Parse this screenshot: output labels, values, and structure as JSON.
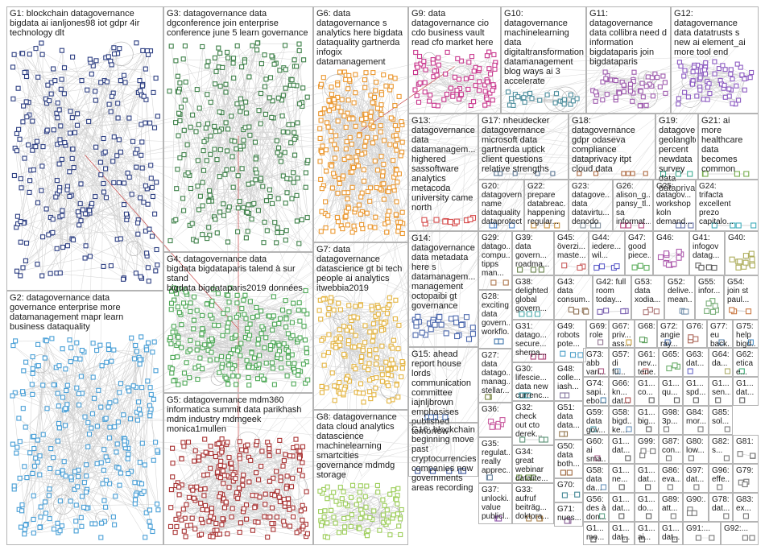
{
  "title": "",
  "groups": [
    {
      "id": "G1",
      "label": "G1: blockchain datagovernance\nbigdata ai ianljones98 iot gdpr 4ir\ntechnology dlt",
      "color": "#0a1f6e"
    },
    {
      "id": "G2",
      "label": "G2: datagovernance data\ngovernance enterprise more\ndatamanagement mapr learn\nbusiness dataquality",
      "color": "#2a8fd0"
    },
    {
      "id": "G3",
      "label": "G3: datagovernance data\ndgconference join enterprise\nconference june 5 learn governance",
      "color": "#1d6b2a"
    },
    {
      "id": "G4",
      "label": "G4: datagovernance data\nbigdata bigdataparis talend à sur stand\nbigdata bigdataparis2019 données",
      "color": "#2f9a3a"
    },
    {
      "id": "G5",
      "label": "G5: datagovernance mdm360\ninformatica summit data parikhash\nmdm industry mdmgeek\nmonica1mullen",
      "color": "#9a1010"
    },
    {
      "id": "G6",
      "label": "G6: data\ndatagovernance s\nanalytics here bigdata\ndataquality gartnerda\ninfogix\ndatamanagement",
      "color": "#e8860c"
    },
    {
      "id": "G7",
      "label": "G7: data\ndatagovernance\ndatascience gt bi tech\npeople ai analytics\nitwebbia2019",
      "color": "#e0a820"
    },
    {
      "id": "G8",
      "label": "G8: datagovernance\ndata cloud analytics\ndatascience\nmachinelearning\nsmartcities\ngovernance mdmdg\nstorage",
      "color": "#8cc63e"
    },
    {
      "id": "G9",
      "label": "G9: data\ndatagovernance cio\ncdo business vault\nread cfo market here",
      "color": "#c0147a"
    },
    {
      "id": "G10",
      "label": "G10:\ndatagovernance\nmachinelearning\ndata\ndigitaltransformation\ndatamanagement\nblog ways ai 3\naccelerate",
      "color": "#2e7b8c"
    },
    {
      "id": "G11",
      "label": "G11:\ndatagovernance\ndata collibra need d\ninformation\nbigdataparis join\nbigdataparis",
      "color": "#8e3fa0"
    },
    {
      "id": "G12",
      "label": "G12:\ndatagovernance\ndata datatrusts s\nnew ai element_ai\nmore tool end",
      "color": "#7a40b8"
    },
    {
      "id": "G13",
      "label": "G13:\ndatagovernance\ndata\ndatamanagem...\nhighered\nsassoftware\nanalytics\nmetacoda\nuniversity came\nnorth",
      "color": "#d03030"
    },
    {
      "id": "G17",
      "label": "G17: nheudecker\ndatagovernance\nmicrosoft data\ngartnerda uptick\nclient questions\nrelative strengths",
      "color": "#406080"
    },
    {
      "id": "G18",
      "label": "G18:\ndatagovernance\ngdpr odaseva\ncompliance\ndataprivacy itpt\ncloud data",
      "color": "#a05020"
    },
    {
      "id": "G19",
      "label": "G19:\ndatagover...\ngeolangltd\npercent newdata\nsurvey data\ndataprivac...",
      "color": "#20a080"
    },
    {
      "id": "G21",
      "label": "G21: ai\nmore\nhealthcare\ndata\nbecomes\ncommon",
      "color": "#60a030"
    },
    {
      "id": "G20",
      "label": "G20:\ndatagovern...\nname\ndataquality\ndataprotecti...",
      "color": "#3070c0"
    },
    {
      "id": "G22",
      "label": "G22:\nprepare\ndatabreac...\nhappening\nregular...",
      "color": "#c08020"
    },
    {
      "id": "G23",
      "label": "G23:\ndatagove...\ndata\ndatavirtu...\ndenodo",
      "color": "#708090"
    },
    {
      "id": "G26",
      "label": "G26:\nalison_g...\npansy_tl...\nsa\ninformat...",
      "color": "#b03070"
    },
    {
      "id": "G25",
      "label": "G25:\ndatagov...\nworkshop\nkoln\ndemand...",
      "color": "#5060a0"
    },
    {
      "id": "G24",
      "label": "G24:\ntrifacta\nexcellent\nprezo\ncapitalo...",
      "color": "#20a0b0"
    },
    {
      "id": "G14",
      "label": "G14:\ndatagovernance\ndata metadata\nhere s\ndatamanagem...\nmanagement\noctopaibi gt\ngovernance",
      "color": "#3050a0"
    },
    {
      "id": "G29",
      "label": "G29:\ndatago...\ncompu...\ntipps\nman...",
      "color": "#a06030"
    },
    {
      "id": "G39",
      "label": "G39:\ndata\ngovern...\nroadma...",
      "color": "#507030"
    },
    {
      "id": "G45",
      "label": "G45:\növerzi...\nmaste...",
      "color": "#c04040"
    },
    {
      "id": "G44",
      "label": "G44:\niedere...\nwil...",
      "color": "#4040c0"
    },
    {
      "id": "G47",
      "label": "G47:\ngood\npiece...",
      "color": "#40a040"
    },
    {
      "id": "G46",
      "label": "G46:",
      "color": "#a040a0"
    },
    {
      "id": "G41",
      "label": "G41:\ninfogov\ndatag...",
      "color": "#404040"
    },
    {
      "id": "G40",
      "label": "G40:",
      "color": "#a0a040"
    },
    {
      "id": "G38",
      "label": "G38:\ndelighted\nglobal\ngovern...",
      "color": "#30a0a0"
    },
    {
      "id": "G43",
      "label": "G43:\ndata\nconsum...",
      "color": "#806040"
    },
    {
      "id": "G42",
      "label": "G42: full\nroom\ntoday...",
      "color": "#6040a0"
    },
    {
      "id": "G53",
      "label": "G53:\ndata\nxodia...",
      "color": "#a06060"
    },
    {
      "id": "G52",
      "label": "G52:\ndelive...\nmean...",
      "color": "#6080a0"
    },
    {
      "id": "G55",
      "label": "G55:\ninfor...",
      "color": "#60a060"
    },
    {
      "id": "G54",
      "label": "G54:\njoin st\npaul...",
      "color": "#c06020"
    },
    {
      "id": "G28",
      "label": "G28:\nexciting\ndata\ngovern...\nworkflo...",
      "color": "#2060a0"
    },
    {
      "id": "G31",
      "label": "G31:\ndatago...\nsecure...\nsherpa...",
      "color": "#a02060"
    },
    {
      "id": "G49",
      "label": "G49:\nrobots\npote...",
      "color": "#3090c0"
    },
    {
      "id": "G69",
      "label": "G69:\nrole",
      "color": "#806080"
    },
    {
      "id": "G67",
      "label": "G67:\npriv...\nass...",
      "color": "#c09020"
    },
    {
      "id": "G68",
      "label": "G68:",
      "color": "#409040"
    },
    {
      "id": "G72",
      "label": "G72:\nangie\nray...",
      "color": "#2050a0"
    },
    {
      "id": "G76",
      "label": "G76:",
      "color": "#a05040"
    },
    {
      "id": "G77",
      "label": "G77:\neu\nback...",
      "color": "#4070a0"
    },
    {
      "id": "G75",
      "label": "G75:\nhelp\nbigd...",
      "color": "#3080c0"
    },
    {
      "id": "G27",
      "label": "G27:\ndata\ndatago...\nmanag...\nstellar...",
      "color": "#607020"
    },
    {
      "id": "G30",
      "label": "G30:\nlifescie...\ndata new\ncurrenc...",
      "color": "#2090a0"
    },
    {
      "id": "G48",
      "label": "G48:\ncolle...\niash...",
      "color": "#706090"
    },
    {
      "id": "G73",
      "label": "G73:\nabb\nvari...",
      "color": "#a04070"
    },
    {
      "id": "G57",
      "label": "G57:\ndi\nfü...",
      "color": "#5090c0"
    },
    {
      "id": "G61",
      "label": "G61:\nnev...\ntene...",
      "color": "#c05050"
    },
    {
      "id": "G65",
      "label": "G65:",
      "color": "#50a050"
    },
    {
      "id": "G63",
      "label": "G63:\ndat...",
      "color": "#5050c0"
    },
    {
      "id": "G64",
      "label": "G64:\nda...",
      "color": "#a0a050"
    },
    {
      "id": "G62",
      "label": "G62:\netica\ne...",
      "color": "#20a060"
    },
    {
      "id": "G15",
      "label": "G15: ahead\nreport house\nlords\ncommunication\ncommittee\niajnljbrown\nemphasises\npublished\ntomorrow",
      "color": "#3060b0"
    },
    {
      "id": "G36",
      "label": "G36:",
      "color": "#c04090"
    },
    {
      "id": "G32",
      "label": "G32:\ncheck\nout cto\nderek...",
      "color": "#408060"
    },
    {
      "id": "G51",
      "label": "G51:\ndata\ndata...",
      "color": "#806030"
    },
    {
      "id": "G74",
      "label": "G74:\nsapi...\nebo...",
      "color": "#3070a0"
    },
    {
      "id": "G66",
      "label": "G66:\nkn...\ndat...",
      "color": "#a03030"
    },
    {
      "id": "G58",
      "label": "G58:\nbigd...\nke...",
      "color": "#5080b0"
    },
    {
      "id": "G1a",
      "label": "G1...\nco...",
      "color": "#404040"
    },
    {
      "id": "G1b",
      "label": "G1...\nqu...",
      "color": "#404040"
    },
    {
      "id": "G1c",
      "label": "G1...\nspd...",
      "color": "#404040"
    },
    {
      "id": "G1d",
      "label": "G1...\nsen...",
      "color": "#404040"
    },
    {
      "id": "G1e",
      "label": "G1...\ndat...",
      "color": "#404040"
    },
    {
      "id": "G16",
      "label": "G16: blockchain\nbeginning move\npast\ncryptocurrencies\ncompanies now\ngovernments\nareas recording",
      "color": "#1a3a8a"
    },
    {
      "id": "G50",
      "label": "G50:\ndata\nboth...",
      "color": "#905020"
    },
    {
      "id": "G59",
      "label": "G59:\ndata\ngov...",
      "color": "#3090a0"
    },
    {
      "id": "G60",
      "label": "G60:\nai\nsma...",
      "color": "#a05080"
    },
    {
      "id": "G35",
      "label": "G35:\nregulat...\nreally\napprec...",
      "color": "#507090"
    },
    {
      "id": "G34",
      "label": "G34:\ngreat\nwebinar\ndatalite...",
      "color": "#609030"
    },
    {
      "id": "G37",
      "label": "G37:\nunlocki...\nvalue\npublicl...",
      "color": "#8040a0"
    },
    {
      "id": "G33",
      "label": "G33:\naufruf\nbeiträg...\ndoktora...",
      "color": "#a07030"
    },
    {
      "id": "G70",
      "label": "G70:",
      "color": "#207080"
    },
    {
      "id": "G58b",
      "label": "G58:\ndata\nda...",
      "color": "#5080b0"
    },
    {
      "id": "G71",
      "label": "G71:\nnues...",
      "color": "#704080"
    },
    {
      "id": "G56",
      "label": "G56:\ndes à\ndon...",
      "color": "#409070"
    },
    {
      "id": "G98",
      "label": "G98:\n3p...",
      "color": "#606060"
    },
    {
      "id": "G84",
      "label": "G84:\nmor...",
      "color": "#606060"
    },
    {
      "id": "G85",
      "label": "G85:\nsol...",
      "color": "#606060"
    },
    {
      "id": "G99",
      "label": "G99:",
      "color": "#606060"
    },
    {
      "id": "G87",
      "label": "G87:\ncon...",
      "color": "#606060"
    },
    {
      "id": "G80",
      "label": "G80:\nlow...",
      "color": "#606060"
    },
    {
      "id": "G82",
      "label": "G82:\ns...",
      "color": "#606060"
    },
    {
      "id": "G81",
      "label": "G81:",
      "color": "#606060"
    },
    {
      "id": "G86",
      "label": "G86:\neva...",
      "color": "#606060"
    },
    {
      "id": "G97",
      "label": "G97:\ndat...",
      "color": "#606060"
    },
    {
      "id": "G96",
      "label": "G96:\neffe...",
      "color": "#606060"
    },
    {
      "id": "G79",
      "label": "G79:",
      "color": "#606060"
    },
    {
      "id": "G89",
      "label": "G89:\natt...",
      "color": "#606060"
    },
    {
      "id": "G90",
      "label": "G90:...",
      "color": "#606060"
    },
    {
      "id": "G78",
      "label": "G78:\ndat...",
      "color": "#606060"
    },
    {
      "id": "G83",
      "label": "G83:\nex...",
      "color": "#606060"
    },
    {
      "id": "G91",
      "label": "G91:...",
      "color": "#606060"
    },
    {
      "id": "G92",
      "label": "G92:...",
      "color": "#606060"
    },
    {
      "id": "G1f",
      "label": "G1...\nbig...",
      "color": "#404040"
    },
    {
      "id": "G1g",
      "label": "G1...\ndat...",
      "color": "#404040"
    },
    {
      "id": "G1h",
      "label": "G1...\ndo...",
      "color": "#404040"
    },
    {
      "id": "G1i",
      "label": "G1...\ndat...",
      "color": "#404040"
    },
    {
      "id": "G1j",
      "label": "G1...\nne...",
      "color": "#404040"
    },
    {
      "id": "G1k",
      "label": "G1...\ndat...",
      "color": "#404040"
    },
    {
      "id": "G1l",
      "label": "G1...\nmo...",
      "color": "#404040"
    },
    {
      "id": "G1m",
      "label": "G1...\ndat...",
      "color": "#404040"
    },
    {
      "id": "G1n",
      "label": "G1...\nai...",
      "color": "#404040"
    },
    {
      "id": "G1o",
      "label": "G1...\ndat...",
      "color": "#404040"
    }
  ]
}
